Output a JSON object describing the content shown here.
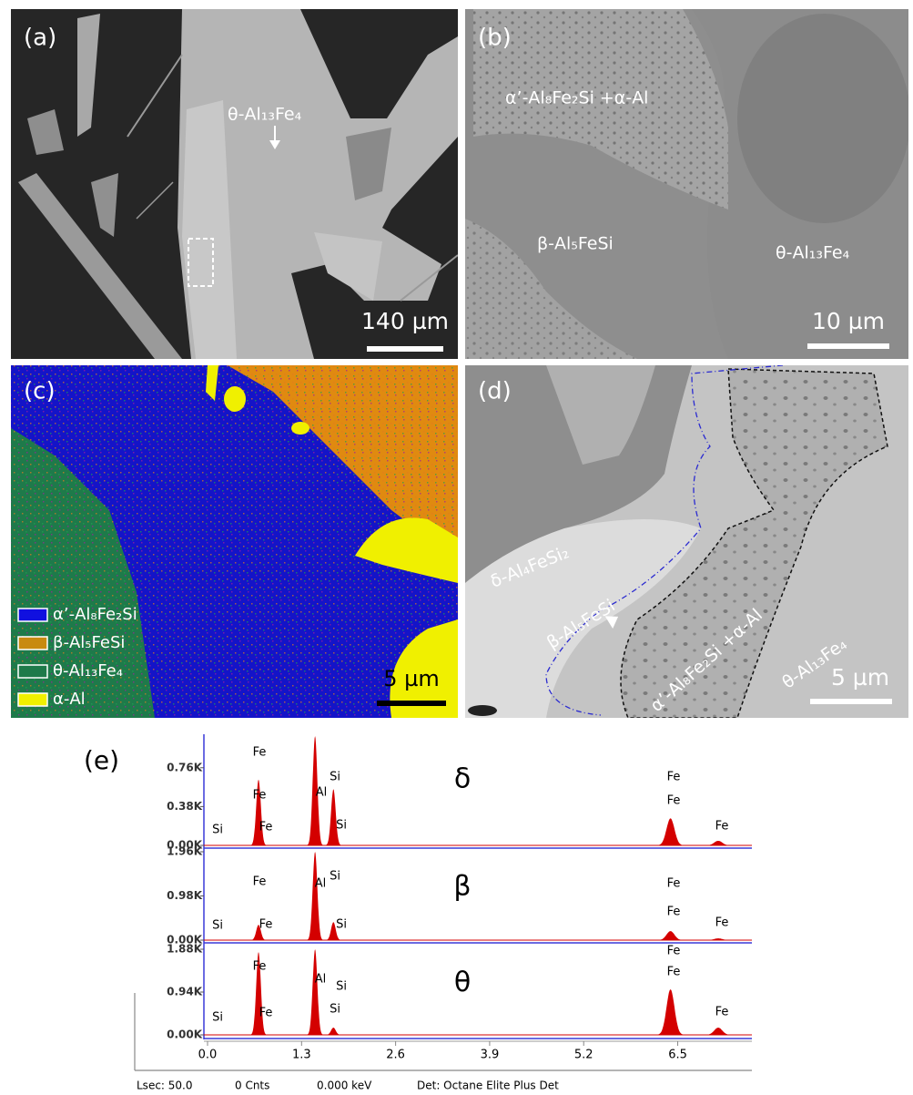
{
  "panels": [
    {
      "label": "(a)",
      "annotations": [
        "θ-Al₁₃Fe₄"
      ],
      "scale_bar": "140 µm"
    },
    {
      "label": "(b)",
      "annotations": [
        "α’-Al₈Fe₂Si +α-Al",
        "β-Al₅FeSi",
        "θ-Al₁₃Fe₄"
      ],
      "scale_bar": "10 µm"
    },
    {
      "label": "(c)",
      "legend": [
        {
          "label": "α’-Al₈Fe₂Si",
          "color": "#1010e0"
        },
        {
          "label": "β-Al₅FeSi",
          "color": "#c88a10"
        },
        {
          "label": "θ-Al₁₃Fe₄",
          "color": "#1e7a4a"
        },
        {
          "label": "α-Al",
          "color": "#f0f000"
        }
      ],
      "scale_bar": "5 µm"
    },
    {
      "label": "(d)",
      "annotations": [
        "δ-Al₄FeSi₂",
        "β-Al₅FeSi",
        "α’-Al₈Fe₂Si +α-Al",
        "θ-Al₁₃Fe₄"
      ],
      "scale_bar": "5 µm"
    }
  ],
  "panel_e_label": "(e)",
  "chart_data": [
    {
      "type": "spectrum",
      "title": "δ",
      "color": "#d40000",
      "x": [
        0.705,
        1.486,
        1.74,
        6.4,
        7.06
      ],
      "values": [
        0.645,
        1.07,
        0.55,
        0.265,
        0.045
      ],
      "peak_labels": [
        "Fe",
        "Fe",
        "Fe",
        "Al",
        "Si",
        "Si",
        "Si",
        "Fe",
        "Fe",
        "Fe"
      ],
      "xlim": [
        0,
        7.5
      ],
      "ylim": [
        0,
        1.07
      ],
      "yticks": [
        {
          "value": 0,
          "label": "0.00K"
        },
        {
          "value": 0.38,
          "label": "0.38K"
        },
        {
          "value": 0.76,
          "label": "0.76K"
        }
      ]
    },
    {
      "type": "spectrum",
      "title": "β",
      "color": "#d40000",
      "x": [
        0.705,
        1.486,
        1.74,
        6.4,
        7.06
      ],
      "values": [
        0.34,
        1.96,
        0.4,
        0.2,
        0.04
      ],
      "peak_labels": [
        "Fe",
        "Fe",
        "Al",
        "Si",
        "Si",
        "Si",
        "Fe",
        "Fe",
        "Fe"
      ],
      "xlim": [
        0,
        7.5
      ],
      "ylim": [
        0,
        1.96
      ],
      "yticks": [
        {
          "value": 0,
          "label": "0.00K"
        },
        {
          "value": 0.98,
          "label": "0.98K"
        },
        {
          "value": 1.96,
          "label": "1.96K"
        }
      ]
    },
    {
      "type": "spectrum",
      "title": "θ",
      "color": "#d40000",
      "x": [
        0.705,
        1.486,
        1.74,
        6.4,
        7.06
      ],
      "values": [
        1.82,
        1.88,
        0.16,
        1.0,
        0.16
      ],
      "peak_labels": [
        "Fe",
        "Fe",
        "Al",
        "Si",
        "Si",
        "Si",
        "Fe",
        "Fe",
        "Fe"
      ],
      "xlim": [
        0,
        7.5
      ],
      "ylim": [
        0,
        1.88
      ],
      "yticks": [
        {
          "value": 0,
          "label": "0.00K"
        },
        {
          "value": 0.94,
          "label": "0.94K"
        },
        {
          "value": 1.88,
          "label": "1.88K"
        }
      ],
      "xticks": [
        {
          "value": 0,
          "label": "0.0"
        },
        1.3,
        2.6,
        3.9,
        5.2,
        6.5
      ]
    }
  ],
  "footer": [
    "Lsec: 50.0",
    "0 Cnts",
    "0.000 keV",
    "Det: Octane Elite Plus Det"
  ]
}
